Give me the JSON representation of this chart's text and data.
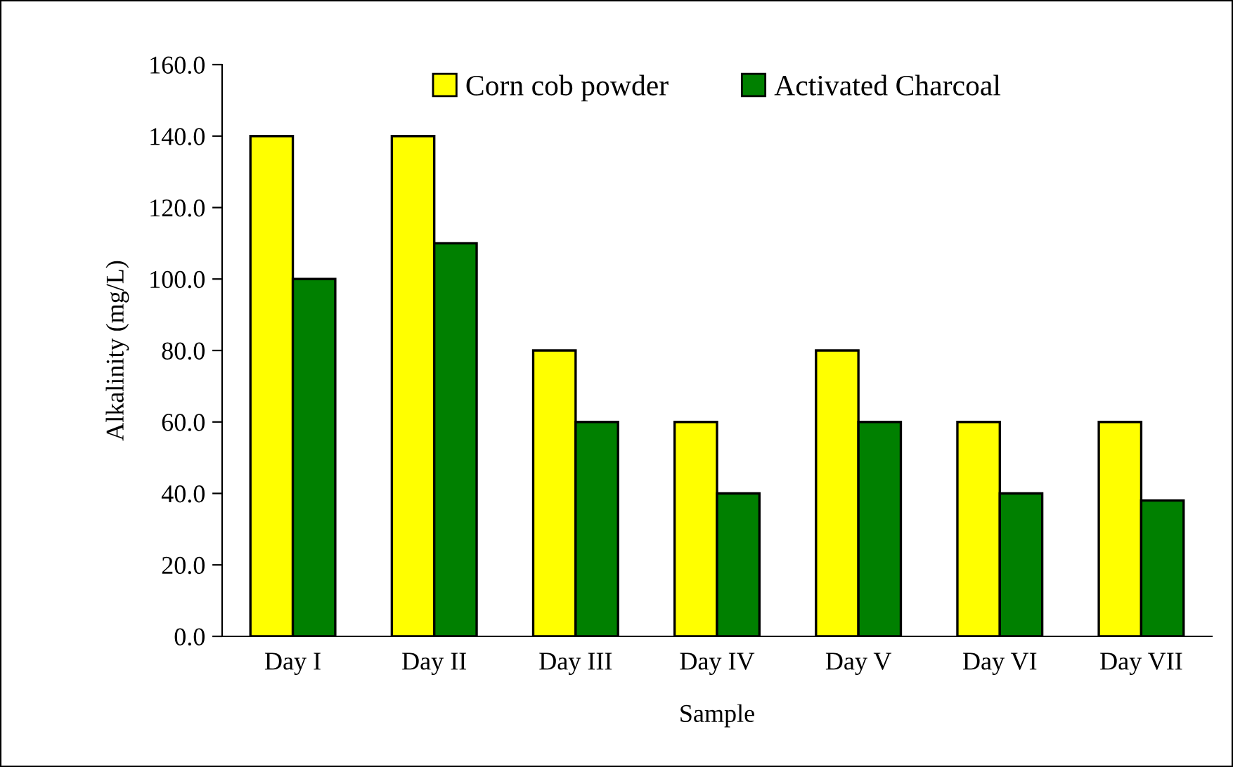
{
  "chart_data": {
    "type": "bar",
    "xlabel": "Sample",
    "ylabel": "Alkalinity (mg/L)",
    "categories": [
      "Day I",
      "Day II",
      "Day III",
      "Day IV",
      "Day V",
      "Day VI",
      "Day VII"
    ],
    "series": [
      {
        "name": "Corn cob powder",
        "color": "#ffff00",
        "values": [
          140,
          140,
          80,
          60,
          80,
          60,
          60
        ]
      },
      {
        "name": "Activated Charcoal",
        "color": "#008000",
        "values": [
          100,
          110,
          60,
          40,
          60,
          40,
          38
        ]
      }
    ],
    "ylim": [
      0,
      160
    ],
    "yticks": [
      {
        "value": 0,
        "label": "0.0"
      },
      {
        "value": 20,
        "label": "20.0"
      },
      {
        "value": 40,
        "label": "40.0"
      },
      {
        "value": 60,
        "label": "60.0"
      },
      {
        "value": 80,
        "label": "80.0"
      },
      {
        "value": 100,
        "label": "100.0"
      },
      {
        "value": 120,
        "label": "120.0"
      },
      {
        "value": 140,
        "label": "140.0"
      },
      {
        "value": 160,
        "label": "160.0"
      }
    ],
    "grid": false,
    "legend": "top"
  }
}
